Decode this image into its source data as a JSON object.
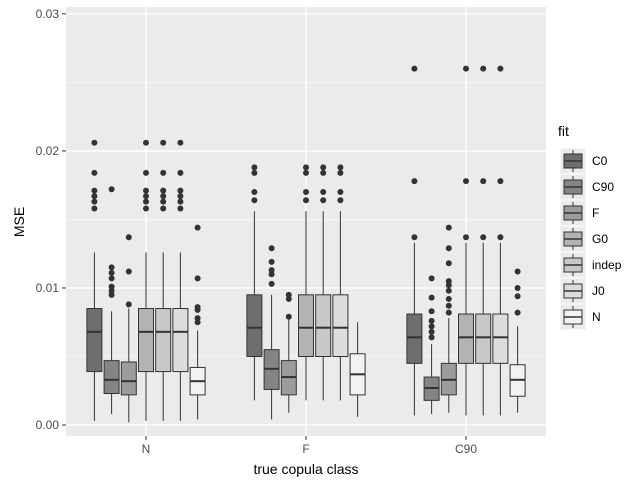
{
  "chart_data": {
    "type": "boxplot",
    "xlabel": "true copula class",
    "ylabel": "MSE",
    "categories": [
      "N",
      "F",
      "C90"
    ],
    "ylim": [
      -0.0008,
      0.0305
    ],
    "y_ticks": [
      0.0,
      0.01,
      0.02,
      0.03
    ],
    "y_tick_labels": [
      "0.00",
      "0.01",
      "0.02",
      "0.03"
    ],
    "grid": true,
    "legend": {
      "title": "fit",
      "position": "right",
      "entries": [
        "C0",
        "C90",
        "F",
        "G0",
        "indep",
        "J0",
        "N"
      ]
    },
    "series": [
      {
        "name": "C0",
        "color": "#6e6e6e",
        "boxes": [
          {
            "min": 0.0003,
            "q1": 0.0039,
            "median": 0.0068,
            "q3": 0.0085,
            "max": 0.0126,
            "outliers": [
              0.0158,
              0.0163,
              0.0167,
              0.0171,
              0.0184,
              0.0206
            ]
          },
          {
            "min": 0.0018,
            "q1": 0.005,
            "median": 0.0071,
            "q3": 0.0095,
            "max": 0.0156,
            "outliers": [
              0.0164,
              0.017,
              0.0184,
              0.0188
            ]
          },
          {
            "min": 0.0007,
            "q1": 0.0045,
            "median": 0.0064,
            "q3": 0.0081,
            "max": 0.0133,
            "outliers": [
              0.0137,
              0.0178,
              0.026
            ]
          }
        ]
      },
      {
        "name": "C90",
        "color": "#858585",
        "boxes": [
          {
            "min": 0.0008,
            "q1": 0.0023,
            "median": 0.0033,
            "q3": 0.0047,
            "max": 0.0083,
            "outliers": [
              0.0095,
              0.0098,
              0.0101,
              0.0107,
              0.0111,
              0.0115,
              0.0172
            ]
          },
          {
            "min": 0.0004,
            "q1": 0.0026,
            "median": 0.0041,
            "q3": 0.0055,
            "max": 0.0095,
            "outliers": [
              0.0103,
              0.011,
              0.0113,
              0.0119,
              0.0129
            ]
          },
          {
            "min": 0.0008,
            "q1": 0.0018,
            "median": 0.0027,
            "q3": 0.0035,
            "max": 0.0059,
            "outliers": [
              0.0064,
              0.0068,
              0.0072,
              0.0076,
              0.0083,
              0.0093,
              0.0107
            ]
          }
        ]
      },
      {
        "name": "F",
        "color": "#9c9c9c",
        "boxes": [
          {
            "min": 0.0002,
            "q1": 0.0022,
            "median": 0.0032,
            "q3": 0.0046,
            "max": 0.0085,
            "outliers": [
              0.0088,
              0.0112,
              0.0137
            ]
          },
          {
            "min": 0.0009,
            "q1": 0.0022,
            "median": 0.0035,
            "q3": 0.0047,
            "max": 0.0077,
            "outliers": [
              0.0079,
              0.0092,
              0.0095
            ]
          },
          {
            "min": 0.0009,
            "q1": 0.0022,
            "median": 0.0033,
            "q3": 0.0045,
            "max": 0.0078,
            "outliers": [
              0.0082,
              0.0087,
              0.0092,
              0.0098,
              0.0102,
              0.0105,
              0.0118,
              0.0129,
              0.0144
            ]
          }
        ]
      },
      {
        "name": "G0",
        "color": "#b3b3b3",
        "boxes": [
          {
            "min": 0.0003,
            "q1": 0.0039,
            "median": 0.0068,
            "q3": 0.0085,
            "max": 0.0126,
            "outliers": [
              0.0158,
              0.0163,
              0.0167,
              0.0171,
              0.0184,
              0.0206
            ]
          },
          {
            "min": 0.0018,
            "q1": 0.005,
            "median": 0.0071,
            "q3": 0.0095,
            "max": 0.0156,
            "outliers": [
              0.0164,
              0.017,
              0.0184,
              0.0188
            ]
          },
          {
            "min": 0.0007,
            "q1": 0.0045,
            "median": 0.0064,
            "q3": 0.0081,
            "max": 0.0133,
            "outliers": [
              0.0137,
              0.0178,
              0.026
            ]
          }
        ]
      },
      {
        "name": "indep",
        "color": "#c8c8c8",
        "boxes": [
          {
            "min": 0.0003,
            "q1": 0.0039,
            "median": 0.0068,
            "q3": 0.0085,
            "max": 0.0126,
            "outliers": [
              0.0158,
              0.0163,
              0.0167,
              0.0171,
              0.0184,
              0.0206
            ]
          },
          {
            "min": 0.0018,
            "q1": 0.005,
            "median": 0.0071,
            "q3": 0.0095,
            "max": 0.0156,
            "outliers": [
              0.0164,
              0.017,
              0.0184,
              0.0188
            ]
          },
          {
            "min": 0.0007,
            "q1": 0.0045,
            "median": 0.0064,
            "q3": 0.0081,
            "max": 0.0133,
            "outliers": [
              0.0137,
              0.0178,
              0.026
            ]
          }
        ]
      },
      {
        "name": "J0",
        "color": "#dddddd",
        "boxes": [
          {
            "min": 0.0003,
            "q1": 0.0039,
            "median": 0.0068,
            "q3": 0.0085,
            "max": 0.0126,
            "outliers": [
              0.0158,
              0.0163,
              0.0167,
              0.0171,
              0.0184,
              0.0206
            ]
          },
          {
            "min": 0.0018,
            "q1": 0.005,
            "median": 0.0071,
            "q3": 0.0095,
            "max": 0.0156,
            "outliers": [
              0.0164,
              0.017,
              0.0184,
              0.0188
            ]
          },
          {
            "min": 0.0007,
            "q1": 0.0045,
            "median": 0.0064,
            "q3": 0.0081,
            "max": 0.0133,
            "outliers": [
              0.0137,
              0.0178,
              0.026
            ]
          }
        ]
      },
      {
        "name": "N",
        "color": "#f2f2f2",
        "boxes": [
          {
            "min": 0.0004,
            "q1": 0.0022,
            "median": 0.0032,
            "q3": 0.0042,
            "max": 0.0069,
            "outliers": [
              0.0075,
              0.0078,
              0.0084,
              0.0086,
              0.0107,
              0.0144
            ]
          },
          {
            "min": 0.0006,
            "q1": 0.0022,
            "median": 0.0037,
            "q3": 0.0052,
            "max": 0.0075,
            "outliers": []
          },
          {
            "min": 0.0009,
            "q1": 0.0021,
            "median": 0.0033,
            "q3": 0.0044,
            "max": 0.0072,
            "outliers": [
              0.0082,
              0.0094,
              0.01,
              0.0112
            ]
          }
        ]
      }
    ]
  }
}
